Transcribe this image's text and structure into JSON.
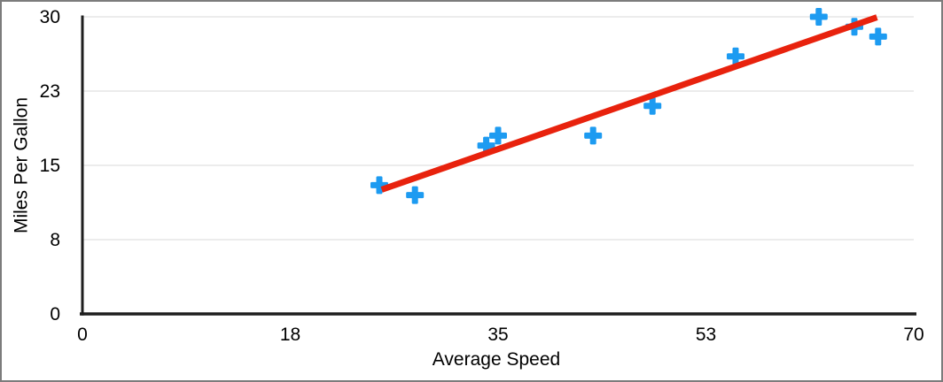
{
  "figure": {
    "background": "#ffffff",
    "border_color": "#7c7c7c"
  },
  "chart_data": {
    "type": "scatter",
    "title": "",
    "xlabel": "Average Speed",
    "ylabel": "Miles Per Gallon",
    "xlim": [
      0,
      70
    ],
    "ylim": [
      0,
      30
    ],
    "grid": "horizontal",
    "legend": "none",
    "x_ticks": {
      "values": [
        0,
        17.5,
        35,
        52.5,
        70
      ],
      "labels": [
        "0",
        "18",
        "35",
        "53",
        "70"
      ]
    },
    "y_ticks": {
      "values": [
        0,
        7.5,
        15,
        22.5,
        30
      ],
      "labels": [
        "0",
        "8",
        "15",
        "23",
        "30"
      ]
    },
    "series": [
      {
        "name": "Miles Per Gallon",
        "marker": "plus",
        "color": "#1D9BF1",
        "points": [
          {
            "x": 25,
            "y": 13
          },
          {
            "x": 28,
            "y": 12
          },
          {
            "x": 34,
            "y": 17
          },
          {
            "x": 35,
            "y": 18
          },
          {
            "x": 43,
            "y": 18
          },
          {
            "x": 48,
            "y": 21
          },
          {
            "x": 55,
            "y": 26
          },
          {
            "x": 62,
            "y": 30
          },
          {
            "x": 65,
            "y": 29
          },
          {
            "x": 67,
            "y": 28
          }
        ]
      }
    ],
    "trendline": {
      "type": "linear",
      "color": "#E8220D",
      "x1": 25.2,
      "y1": 12.55,
      "x2": 66.9,
      "y2": 29.95
    },
    "colors": {
      "marker": "#1D9BF1",
      "trendline": "#E8220D",
      "gridline": "#D8D8D8",
      "axis": "#1E1E1E",
      "tick_text": "#000000"
    }
  }
}
